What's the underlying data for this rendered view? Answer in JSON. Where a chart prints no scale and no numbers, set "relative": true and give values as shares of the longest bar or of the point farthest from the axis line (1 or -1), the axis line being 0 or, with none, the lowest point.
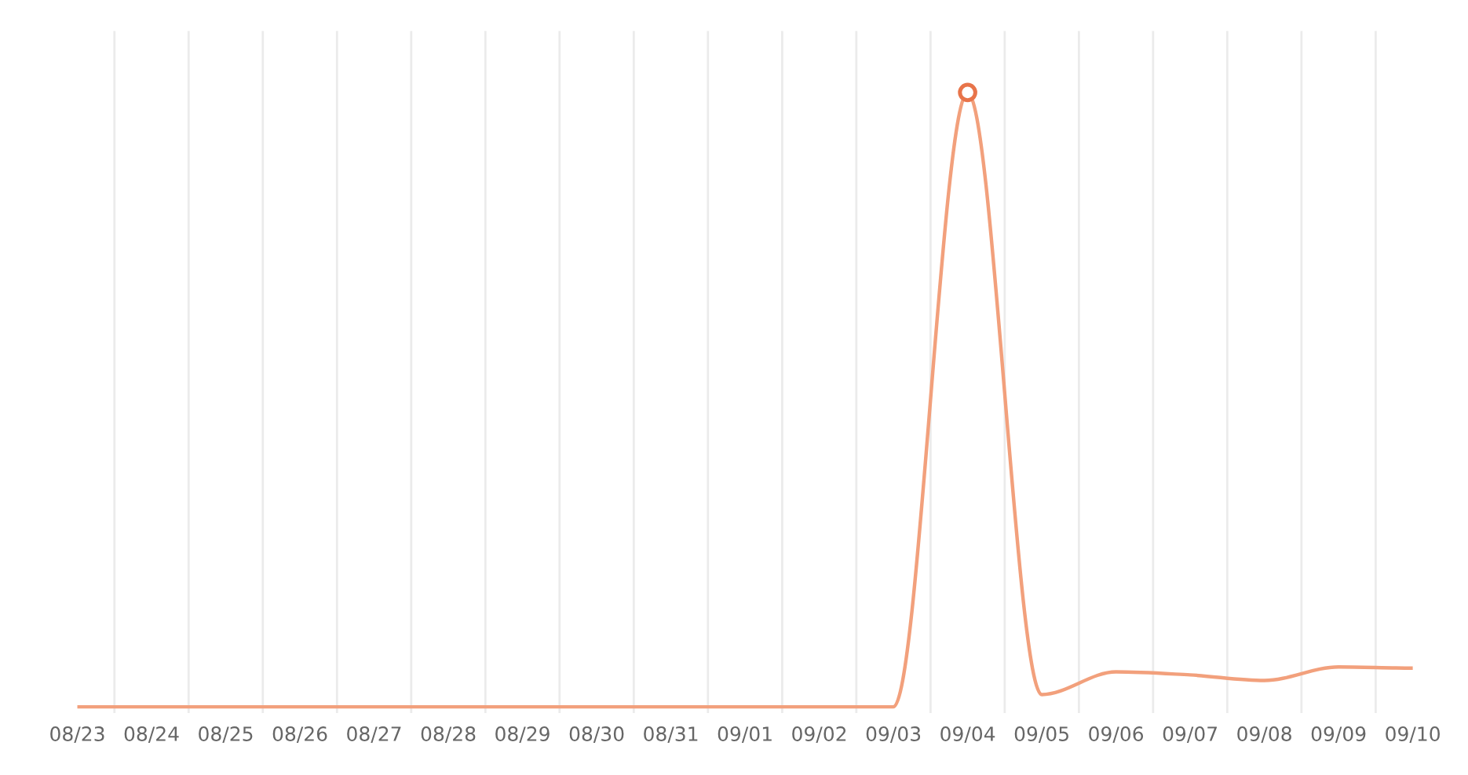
{
  "chart_data": {
    "type": "line",
    "relative": true,
    "grid": "x",
    "marker": "none",
    "legend": false,
    "categories": [
      "08/23",
      "08/24",
      "08/25",
      "08/26",
      "08/27",
      "08/28",
      "08/29",
      "08/30",
      "08/31",
      "09/01",
      "09/02",
      "09/03",
      "09/04",
      "09/05",
      "09/06",
      "09/07",
      "09/08",
      "09/09",
      "09/10"
    ],
    "series": [
      {
        "color": "#f2a07c",
        "values": [
          0,
          0,
          0,
          0,
          0,
          0,
          0,
          0,
          0,
          0,
          0,
          0,
          1,
          0.02,
          0.057,
          0.052,
          0.043,
          0.065,
          0.063
        ]
      },
      {
        "type": "scatter",
        "marker": "circle",
        "color": "#e8744a",
        "x": [
          "09/04"
        ],
        "values": [
          1
        ]
      }
    ]
  }
}
